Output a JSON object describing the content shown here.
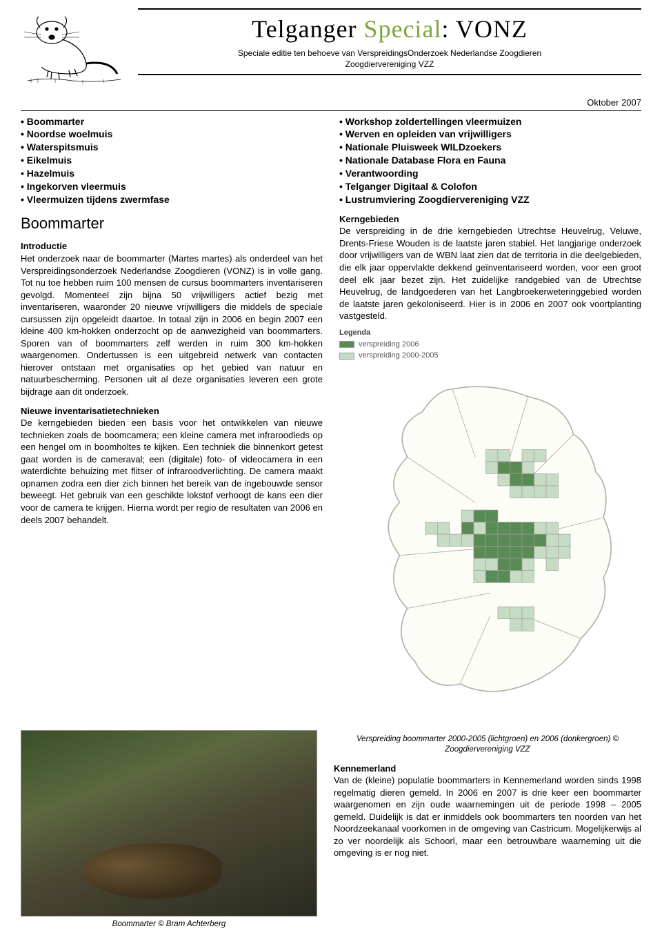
{
  "header": {
    "title_prefix": "Telganger ",
    "title_green": "Special",
    "title_suffix": ": VONZ",
    "subtitle_line1": "Speciale editie ten behoeve van VerspreidingsOnderzoek Nederlandse Zoogdieren",
    "subtitle_line2": "Zoogdiervereniging VZZ",
    "date": "Oktober 2007"
  },
  "toc_left": [
    "Boommarter",
    "Noordse woelmuis",
    "Waterspitsmuis",
    "Eikelmuis",
    "Hazelmuis",
    "Ingekorven vleermuis",
    "Vleermuizen tijdens zwermfase"
  ],
  "toc_right": [
    "Workshop zoldertellingen vleermuizen",
    "Werven en opleiden van vrijwilligers",
    "Nationale Pluisweek WILDzoekers",
    "Nationale Database Flora en Fauna",
    "Verantwoording",
    "Telganger Digitaal & Colofon",
    "Lustrumviering Zoogdiervereniging VZZ"
  ],
  "article": {
    "title": "Boommarter",
    "intro_heading": "Introductie",
    "intro_text": "Het onderzoek naar de boommarter (Martes martes) als onderdeel van het Verspreidingsonderzoek Nederlandse Zoogdieren (VONZ) is in volle gang. Tot nu toe hebben ruim 100 mensen de cursus boommarters inventariseren gevolgd. Momenteel zijn bijna 50 vrijwilligers actief bezig met inventariseren, waaronder 20 nieuwe vrijwilligers die middels de speciale cursussen zijn opgeleidt daartoe. In totaal zijn in 2006 en begin 2007 een kleine 400 km-hokken onderzocht op de aanwezigheid van boommarters. Sporen van of boommarters zelf werden in ruim 300 km-hokken waargenomen. Ondertussen is een uitgebreid netwerk van contacten hierover ontstaan met organisaties op het gebied van natuur en natuurbescherming. Personen uit al deze organisaties leveren een grote bijdrage aan dit onderzoek.",
    "tech_heading": "Nieuwe inventarisatietechnieken",
    "tech_text": "De kerngebieden bieden een basis voor het ontwikkelen van nieuwe technieken zoals de boomcamera; een kleine camera met  infraroodleds op een hengel om in boomholtes te kijken. Een techniek die binnenkort getest gaat worden is de cameraval; een (digitale) foto- of videocamera in een waterdichte behuizing met flitser of infraroodverlichting. De camera maakt opnamen zodra een dier zich binnen het bereik van de ingebouwde sensor beweegt. Het gebruik van een geschikte lokstof verhoogt de kans een dier voor de camera te krijgen. Hierna wordt per regio de resultaten van 2006 en deels 2007 behandelt.",
    "kern_heading": "Kerngebieden",
    "kern_text": "De verspreiding in de drie kerngebieden Utrechtse Heuvelrug, Veluwe, Drents-Friese Wouden is de laatste jaren stabiel. Het langjarige onderzoek door vrijwilligers van de WBN laat zien dat de territoria in die deelgebieden, die elk jaar oppervlakte dekkend geïnventariseerd worden, voor een groot deel elk jaar bezet zijn. Het zuidelijke randgebied van de Utrechtse Heuvelrug, de landgoederen van het Langbroekerweteringgebied worden de laatste jaren gekoloniseerd. Hier is in 2006 en 2007 ook voortplanting vastgesteld.",
    "map_caption": "Verspreiding boommarter 2000-2005 (lichtgroen) en 2006 (donkergroen) © Zoogdiervereniging VZZ",
    "kenn_heading": "Kennemerland",
    "kenn_text": "Van de (kleine) populatie boommarters in Kennemerland worden sinds 1998 regelmatig dieren gemeld. In 2006 en 2007 is drie keer een boommarter waargenomen en zijn oude waarnemingen uit de periode 1998 – 2005 gemeld. Duidelijk is dat er inmiddels ook boommarters ten noorden van het Noordzeekanaal voorkomen in de omgeving van Castricum. Mogelijkerwijs al zo ver noordelijk als Schoorl, maar een betrouwbare waarneming uit die omgeving is er nog niet.",
    "photo_caption": "Boommarter © Bram Achterberg"
  },
  "legend": {
    "title": "Legenda",
    "items": [
      {
        "label": "verspreiding 2006",
        "color": "#5a8a56"
      },
      {
        "label": "verspreiding 2000-2005",
        "color": "#c7dcc4"
      }
    ]
  },
  "map": {
    "outline_color": "#b0b0a8",
    "bg_color": "#fdfdf8",
    "cell_dark": "#5a8a56",
    "cell_light": "#c7dcc4",
    "cell_border": "#a0a098",
    "cells_dark": [
      [
        10,
        6
      ],
      [
        11,
        6
      ],
      [
        11,
        7
      ],
      [
        12,
        7
      ],
      [
        8,
        10
      ],
      [
        9,
        10
      ],
      [
        9,
        11
      ],
      [
        10,
        11
      ],
      [
        10,
        12
      ],
      [
        11,
        11
      ],
      [
        11,
        12
      ],
      [
        12,
        11
      ],
      [
        12,
        12
      ],
      [
        13,
        12
      ],
      [
        9,
        13
      ],
      [
        10,
        13
      ],
      [
        11,
        13
      ],
      [
        12,
        13
      ],
      [
        10,
        14
      ],
      [
        11,
        14
      ],
      [
        8,
        12
      ],
      [
        8,
        13
      ],
      [
        9,
        12
      ],
      [
        10,
        15
      ],
      [
        9,
        15
      ],
      [
        7,
        11
      ]
    ],
    "cells_light": [
      [
        9,
        5
      ],
      [
        10,
        5
      ],
      [
        12,
        5
      ],
      [
        13,
        5
      ],
      [
        9,
        6
      ],
      [
        12,
        6
      ],
      [
        10,
        7
      ],
      [
        13,
        7
      ],
      [
        14,
        7
      ],
      [
        11,
        8
      ],
      [
        12,
        8
      ],
      [
        13,
        8
      ],
      [
        14,
        8
      ],
      [
        7,
        10
      ],
      [
        8,
        11
      ],
      [
        7,
        12
      ],
      [
        13,
        11
      ],
      [
        14,
        11
      ],
      [
        13,
        13
      ],
      [
        14,
        12
      ],
      [
        14,
        13
      ],
      [
        15,
        12
      ],
      [
        8,
        14
      ],
      [
        9,
        14
      ],
      [
        12,
        14
      ],
      [
        8,
        15
      ],
      [
        11,
        15
      ],
      [
        12,
        15
      ],
      [
        4,
        11
      ],
      [
        5,
        11
      ],
      [
        5,
        12
      ],
      [
        6,
        12
      ],
      [
        10,
        18
      ],
      [
        11,
        18
      ],
      [
        12,
        18
      ],
      [
        11,
        19
      ],
      [
        12,
        19
      ],
      [
        14,
        14
      ],
      [
        15,
        13
      ]
    ]
  },
  "colors": {
    "green_accent": "#7aa838",
    "text": "#000000"
  }
}
